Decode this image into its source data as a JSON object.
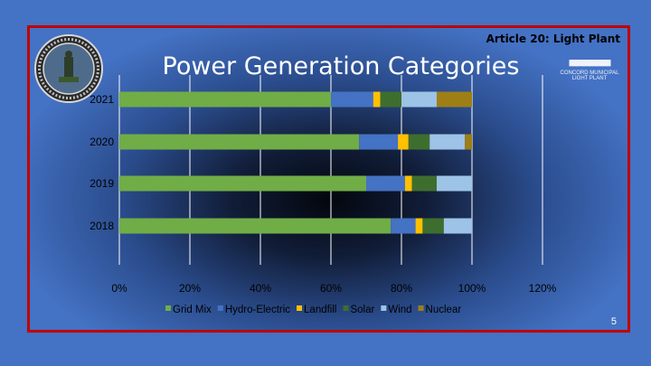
{
  "header": {
    "article": "Article 20: Light Plant",
    "title": "Power Generation Categories",
    "logo_line1": "CONCORD MUNICIPAL",
    "logo_line2": "LIGHT PLANT"
  },
  "footer": {
    "page_number": "5"
  },
  "chart_data": {
    "type": "bar",
    "orientation": "horizontal",
    "stacked": "percent",
    "categories": [
      "2021",
      "2020",
      "2019",
      "2018"
    ],
    "series": [
      {
        "name": "Grid Mix",
        "color": "#70AD47",
        "values": [
          60,
          68,
          70,
          77
        ]
      },
      {
        "name": "Hydro-Electric",
        "color": "#4472C4",
        "values": [
          12,
          11,
          11,
          7
        ]
      },
      {
        "name": "Landfill",
        "color": "#FFC000",
        "values": [
          2,
          3,
          2,
          2
        ]
      },
      {
        "name": "Solar",
        "color": "#3E6E2E",
        "values": [
          6,
          6,
          7,
          6
        ]
      },
      {
        "name": "Wind",
        "color": "#9DC3E6",
        "values": [
          10,
          10,
          10,
          8
        ]
      },
      {
        "name": "Nuclear",
        "color": "#9E7F16",
        "values": [
          10,
          2,
          0,
          0
        ]
      }
    ],
    "x_ticks": [
      "0%",
      "20%",
      "40%",
      "60%",
      "80%",
      "100%",
      "120%"
    ],
    "xlim": [
      0,
      120
    ],
    "gridlines": "vertical",
    "legend": "bottom"
  }
}
